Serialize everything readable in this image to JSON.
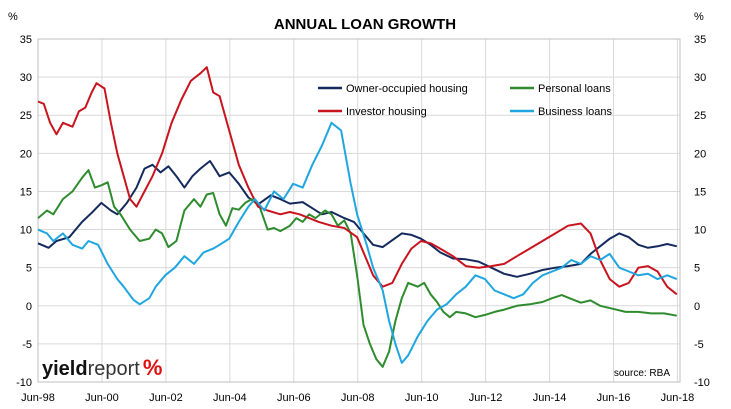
{
  "chart_data": {
    "type": "line",
    "title": "ANNUAL LOAN GROWTH",
    "y_unit_left": "%",
    "y_unit_right": "%",
    "ylim": [
      -10,
      35
    ],
    "yticks": [
      -10,
      -5,
      0,
      5,
      10,
      15,
      20,
      25,
      30,
      35
    ],
    "xlim": [
      1998.42,
      2018.5
    ],
    "xtick_labels": [
      "Jun-98",
      "Jun-00",
      "Jun-02",
      "Jun-04",
      "Jun-06",
      "Jun-08",
      "Jun-10",
      "Jun-12",
      "Jun-14",
      "Jun-16",
      "Jun-18"
    ],
    "xtick_values": [
      1998.42,
      2000.42,
      2002.42,
      2004.42,
      2006.42,
      2008.42,
      2010.42,
      2012.42,
      2014.42,
      2016.42,
      2018.42
    ],
    "grid": true,
    "legend_position": "top-right",
    "source_note": "source: RBA",
    "logo": {
      "part1": "yield",
      "part2": "report",
      "part3": "%"
    },
    "series": [
      {
        "name": "Owner-occupied housing",
        "color": "#142a5e",
        "points": [
          [
            1998.42,
            8.2
          ],
          [
            1998.75,
            7.6
          ],
          [
            1999.0,
            8.5
          ],
          [
            1999.4,
            9.0
          ],
          [
            1999.8,
            11.0
          ],
          [
            2000.1,
            12.2
          ],
          [
            2000.4,
            13.5
          ],
          [
            2000.7,
            12.5
          ],
          [
            2000.9,
            12.0
          ],
          [
            2001.2,
            13.5
          ],
          [
            2001.5,
            15.5
          ],
          [
            2001.75,
            18.0
          ],
          [
            2002.0,
            18.5
          ],
          [
            2002.25,
            17.5
          ],
          [
            2002.5,
            18.3
          ],
          [
            2002.75,
            17.0
          ],
          [
            2003.0,
            15.5
          ],
          [
            2003.25,
            17.0
          ],
          [
            2003.5,
            18.0
          ],
          [
            2003.8,
            19.0
          ],
          [
            2004.1,
            17.0
          ],
          [
            2004.4,
            17.5
          ],
          [
            2004.7,
            16.0
          ],
          [
            2005.0,
            14.2
          ],
          [
            2005.3,
            13.3
          ],
          [
            2005.7,
            14.5
          ],
          [
            2006.0,
            14.0
          ],
          [
            2006.3,
            13.4
          ],
          [
            2006.7,
            13.6
          ],
          [
            2007.0,
            12.8
          ],
          [
            2007.3,
            12.0
          ],
          [
            2007.6,
            12.3
          ],
          [
            2008.0,
            11.5
          ],
          [
            2008.3,
            11.0
          ],
          [
            2008.6,
            9.5
          ],
          [
            2008.9,
            8.0
          ],
          [
            2009.2,
            7.7
          ],
          [
            2009.5,
            8.6
          ],
          [
            2009.8,
            9.5
          ],
          [
            2010.1,
            9.3
          ],
          [
            2010.4,
            8.8
          ],
          [
            2010.7,
            8.0
          ],
          [
            2011.0,
            7.0
          ],
          [
            2011.4,
            6.2
          ],
          [
            2011.8,
            6.1
          ],
          [
            2012.2,
            5.8
          ],
          [
            2012.6,
            5.0
          ],
          [
            2013.0,
            4.2
          ],
          [
            2013.4,
            3.8
          ],
          [
            2013.8,
            4.2
          ],
          [
            2014.2,
            4.7
          ],
          [
            2014.6,
            5.0
          ],
          [
            2015.0,
            5.2
          ],
          [
            2015.4,
            5.5
          ],
          [
            2015.7,
            6.8
          ],
          [
            2016.0,
            7.8
          ],
          [
            2016.3,
            8.8
          ],
          [
            2016.6,
            9.5
          ],
          [
            2016.9,
            9.0
          ],
          [
            2017.2,
            8.0
          ],
          [
            2017.5,
            7.6
          ],
          [
            2017.8,
            7.8
          ],
          [
            2018.1,
            8.1
          ],
          [
            2018.4,
            7.8
          ]
        ]
      },
      {
        "name": "Personal loans",
        "color": "#2e8b2e",
        "points": [
          [
            1998.42,
            11.5
          ],
          [
            1998.7,
            12.5
          ],
          [
            1998.9,
            12.0
          ],
          [
            1999.2,
            14.0
          ],
          [
            1999.5,
            15.0
          ],
          [
            1999.8,
            16.8
          ],
          [
            2000.0,
            17.8
          ],
          [
            2000.2,
            15.5
          ],
          [
            2000.4,
            15.8
          ],
          [
            2000.6,
            16.2
          ],
          [
            2000.8,
            13.0
          ],
          [
            2001.0,
            12.0
          ],
          [
            2001.3,
            10.0
          ],
          [
            2001.6,
            8.5
          ],
          [
            2001.9,
            8.8
          ],
          [
            2002.1,
            10.0
          ],
          [
            2002.3,
            9.5
          ],
          [
            2002.5,
            7.7
          ],
          [
            2002.75,
            8.5
          ],
          [
            2003.0,
            12.5
          ],
          [
            2003.3,
            14.0
          ],
          [
            2003.5,
            13.0
          ],
          [
            2003.7,
            14.6
          ],
          [
            2003.9,
            14.8
          ],
          [
            2004.1,
            12.0
          ],
          [
            2004.3,
            10.5
          ],
          [
            2004.5,
            12.8
          ],
          [
            2004.7,
            12.6
          ],
          [
            2004.9,
            13.5
          ],
          [
            2005.1,
            14.0
          ],
          [
            2005.35,
            13.0
          ],
          [
            2005.6,
            10.0
          ],
          [
            2005.8,
            10.2
          ],
          [
            2006.0,
            9.8
          ],
          [
            2006.3,
            10.5
          ],
          [
            2006.5,
            11.5
          ],
          [
            2006.7,
            11.0
          ],
          [
            2006.9,
            12.0
          ],
          [
            2007.1,
            11.5
          ],
          [
            2007.4,
            12.5
          ],
          [
            2007.6,
            12.0
          ],
          [
            2007.8,
            10.5
          ],
          [
            2008.0,
            11.2
          ],
          [
            2008.2,
            9.5
          ],
          [
            2008.4,
            4.0
          ],
          [
            2008.6,
            -2.5
          ],
          [
            2008.8,
            -5.0
          ],
          [
            2009.0,
            -7.0
          ],
          [
            2009.2,
            -8.0
          ],
          [
            2009.4,
            -6.0
          ],
          [
            2009.6,
            -2.0
          ],
          [
            2009.8,
            1.0
          ],
          [
            2010.0,
            3.0
          ],
          [
            2010.3,
            2.5
          ],
          [
            2010.5,
            3.0
          ],
          [
            2010.7,
            1.5
          ],
          [
            2010.9,
            0.5
          ],
          [
            2011.1,
            -0.8
          ],
          [
            2011.3,
            -1.5
          ],
          [
            2011.5,
            -0.8
          ],
          [
            2011.8,
            -1.0
          ],
          [
            2012.1,
            -1.5
          ],
          [
            2012.4,
            -1.2
          ],
          [
            2012.7,
            -0.8
          ],
          [
            2013.0,
            -0.5
          ],
          [
            2013.4,
            0.0
          ],
          [
            2013.8,
            0.2
          ],
          [
            2014.2,
            0.5
          ],
          [
            2014.5,
            1.0
          ],
          [
            2014.8,
            1.4
          ],
          [
            2015.1,
            0.9
          ],
          [
            2015.4,
            0.4
          ],
          [
            2015.7,
            0.7
          ],
          [
            2016.0,
            0.0
          ],
          [
            2016.4,
            -0.4
          ],
          [
            2016.8,
            -0.8
          ],
          [
            2017.2,
            -0.8
          ],
          [
            2017.6,
            -1.0
          ],
          [
            2018.0,
            -1.0
          ],
          [
            2018.4,
            -1.3
          ]
        ]
      },
      {
        "name": "Investor housing",
        "color": "#c8141e",
        "points": [
          [
            1998.42,
            26.8
          ],
          [
            1998.6,
            26.5
          ],
          [
            1998.8,
            24.0
          ],
          [
            1999.0,
            22.5
          ],
          [
            1999.2,
            24.0
          ],
          [
            1999.5,
            23.5
          ],
          [
            1999.7,
            25.5
          ],
          [
            1999.9,
            26.0
          ],
          [
            2000.1,
            28.0
          ],
          [
            2000.25,
            29.2
          ],
          [
            2000.5,
            28.5
          ],
          [
            2000.7,
            24.0
          ],
          [
            2000.9,
            20.0
          ],
          [
            2001.1,
            17.0
          ],
          [
            2001.3,
            14.0
          ],
          [
            2001.5,
            13.0
          ],
          [
            2001.75,
            15.0
          ],
          [
            2002.0,
            17.0
          ],
          [
            2002.3,
            20.0
          ],
          [
            2002.6,
            24.0
          ],
          [
            2002.9,
            27.0
          ],
          [
            2003.2,
            29.5
          ],
          [
            2003.5,
            30.5
          ],
          [
            2003.7,
            31.3
          ],
          [
            2003.9,
            28.0
          ],
          [
            2004.1,
            27.5
          ],
          [
            2004.4,
            23.0
          ],
          [
            2004.7,
            18.5
          ],
          [
            2005.0,
            15.5
          ],
          [
            2005.3,
            13.0
          ],
          [
            2005.6,
            12.5
          ],
          [
            2006.0,
            12.0
          ],
          [
            2006.3,
            12.3
          ],
          [
            2006.6,
            12.0
          ],
          [
            2006.9,
            11.5
          ],
          [
            2007.2,
            11.0
          ],
          [
            2007.6,
            10.5
          ],
          [
            2008.0,
            10.2
          ],
          [
            2008.4,
            9.0
          ],
          [
            2008.7,
            6.0
          ],
          [
            2008.9,
            4.0
          ],
          [
            2009.2,
            2.5
          ],
          [
            2009.5,
            3.0
          ],
          [
            2009.8,
            5.5
          ],
          [
            2010.1,
            7.5
          ],
          [
            2010.4,
            8.5
          ],
          [
            2010.7,
            8.2
          ],
          [
            2011.0,
            7.5
          ],
          [
            2011.4,
            6.5
          ],
          [
            2011.8,
            5.2
          ],
          [
            2012.2,
            5.0
          ],
          [
            2012.6,
            5.2
          ],
          [
            2013.0,
            5.5
          ],
          [
            2013.4,
            6.5
          ],
          [
            2013.8,
            7.5
          ],
          [
            2014.2,
            8.5
          ],
          [
            2014.6,
            9.5
          ],
          [
            2015.0,
            10.5
          ],
          [
            2015.4,
            10.8
          ],
          [
            2015.7,
            9.5
          ],
          [
            2016.0,
            6.0
          ],
          [
            2016.3,
            3.5
          ],
          [
            2016.6,
            2.5
          ],
          [
            2016.9,
            3.0
          ],
          [
            2017.2,
            5.0
          ],
          [
            2017.5,
            5.2
          ],
          [
            2017.8,
            4.5
          ],
          [
            2018.1,
            2.5
          ],
          [
            2018.4,
            1.5
          ]
        ]
      },
      {
        "name": "Business loans",
        "color": "#1fa6e0",
        "points": [
          [
            1998.42,
            10.0
          ],
          [
            1998.7,
            9.5
          ],
          [
            1998.9,
            8.5
          ],
          [
            1999.2,
            9.5
          ],
          [
            1999.5,
            8.0
          ],
          [
            1999.8,
            7.5
          ],
          [
            2000.0,
            8.5
          ],
          [
            2000.3,
            8.0
          ],
          [
            2000.6,
            5.5
          ],
          [
            2000.9,
            3.5
          ],
          [
            2001.1,
            2.5
          ],
          [
            2001.4,
            0.8
          ],
          [
            2001.6,
            0.2
          ],
          [
            2001.9,
            1.0
          ],
          [
            2002.1,
            2.5
          ],
          [
            2002.4,
            4.0
          ],
          [
            2002.7,
            5.0
          ],
          [
            2003.0,
            6.5
          ],
          [
            2003.3,
            5.5
          ],
          [
            2003.6,
            7.0
          ],
          [
            2003.9,
            7.5
          ],
          [
            2004.1,
            8.0
          ],
          [
            2004.4,
            8.8
          ],
          [
            2004.7,
            11.0
          ],
          [
            2005.0,
            13.0
          ],
          [
            2005.2,
            14.0
          ],
          [
            2005.5,
            12.5
          ],
          [
            2005.8,
            15.0
          ],
          [
            2006.1,
            14.0
          ],
          [
            2006.4,
            16.0
          ],
          [
            2006.7,
            15.5
          ],
          [
            2007.0,
            18.5
          ],
          [
            2007.3,
            21.0
          ],
          [
            2007.6,
            24.0
          ],
          [
            2007.9,
            23.0
          ],
          [
            2008.2,
            16.0
          ],
          [
            2008.4,
            12.0
          ],
          [
            2008.7,
            8.0
          ],
          [
            2008.9,
            5.0
          ],
          [
            2009.2,
            2.0
          ],
          [
            2009.4,
            -2.0
          ],
          [
            2009.6,
            -5.0
          ],
          [
            2009.8,
            -7.5
          ],
          [
            2010.0,
            -6.5
          ],
          [
            2010.3,
            -4.0
          ],
          [
            2010.6,
            -2.0
          ],
          [
            2010.9,
            -0.5
          ],
          [
            2011.2,
            0.2
          ],
          [
            2011.5,
            1.5
          ],
          [
            2011.8,
            2.5
          ],
          [
            2012.1,
            4.0
          ],
          [
            2012.4,
            3.5
          ],
          [
            2012.7,
            2.0
          ],
          [
            2013.0,
            1.5
          ],
          [
            2013.3,
            1.0
          ],
          [
            2013.6,
            1.5
          ],
          [
            2013.9,
            3.0
          ],
          [
            2014.2,
            4.0
          ],
          [
            2014.5,
            4.5
          ],
          [
            2014.8,
            5.0
          ],
          [
            2015.1,
            6.0
          ],
          [
            2015.4,
            5.5
          ],
          [
            2015.7,
            6.5
          ],
          [
            2016.0,
            6.0
          ],
          [
            2016.3,
            6.8
          ],
          [
            2016.6,
            5.0
          ],
          [
            2016.9,
            4.5
          ],
          [
            2017.2,
            4.0
          ],
          [
            2017.5,
            4.2
          ],
          [
            2017.8,
            3.5
          ],
          [
            2018.1,
            4.0
          ],
          [
            2018.4,
            3.5
          ]
        ]
      }
    ]
  }
}
